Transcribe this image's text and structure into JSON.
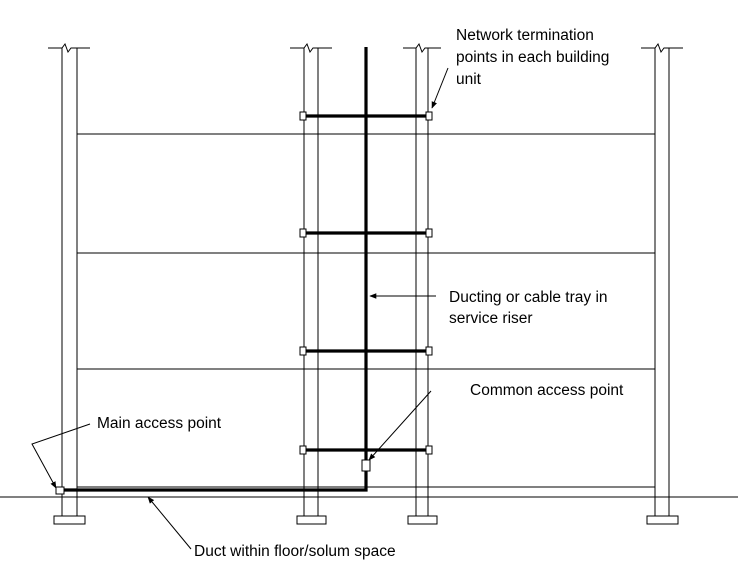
{
  "labels": {
    "network_termination_line1": "Network termination",
    "network_termination_line2": "points in each building",
    "network_termination_line3": "unit",
    "ducting_line1": "Ducting or cable tray in",
    "ducting_line2": "service riser",
    "common_access_point": "Common access point",
    "main_access_point": "Main access point",
    "duct_within_floor": "Duct within floor/solum space"
  }
}
